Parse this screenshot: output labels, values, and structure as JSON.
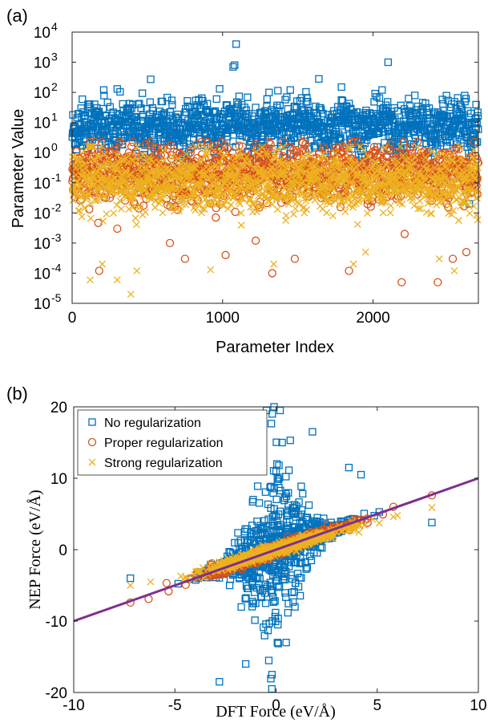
{
  "colors": {
    "no_reg": "#0072BD",
    "proper_reg": "#D95319",
    "strong_reg": "#EDB120",
    "fit_line": "#7E2F8E"
  },
  "chart_data": [
    {
      "panel_label": "(a)",
      "type": "scatter",
      "xlabel": "Parameter Index",
      "ylabel": "Parameter Value",
      "xlim": [
        0,
        2700
      ],
      "ylim": [
        1e-05,
        10000.0
      ],
      "yscale": "log",
      "x_ticks": [
        0,
        1000,
        2000
      ],
      "x_tick_labels": [
        "0",
        "1000",
        "2000"
      ],
      "y_tick_exponents": [
        -5,
        -4,
        -3,
        -2,
        -1,
        0,
        1,
        2,
        3,
        4
      ],
      "y_tick_base": "10",
      "grid": false,
      "series": [
        {
          "marker": "square",
          "color_key": "no_reg",
          "points_desc": "approx. 2700 points, one per parameter, typically between 0.5 and 200",
          "outliers": [
            [
              1090,
              4000
            ],
            [
              1080,
              800
            ],
            [
              2100,
              1000
            ],
            [
              1640,
              280
            ],
            [
              1790,
              150
            ],
            [
              2060,
              120
            ],
            [
              210,
              120
            ],
            [
              300,
              130
            ],
            [
              1450,
              120
            ],
            [
              1070,
              700
            ],
            [
              60,
              30
            ],
            [
              960,
              60
            ],
            [
              2650,
              20
            ],
            [
              2640,
              0.02
            ]
          ]
        },
        {
          "marker": "circle",
          "color_key": "proper_reg",
          "points_desc": "approx. 2700 points, typically between 0.002 and 2",
          "outliers": [
            [
              180,
              0.00012
            ],
            [
              1330,
              0.0001
            ],
            [
              2190,
              5e-05
            ],
            [
              2430,
              5e-05
            ],
            [
              750,
              0.0003
            ],
            [
              1480,
              0.0003
            ],
            [
              1840,
              0.00012
            ],
            [
              2530,
              0.0003
            ],
            [
              2620,
              0.0005
            ],
            [
              1020,
              0.0004
            ],
            [
              650,
              0.001
            ],
            [
              2210,
              0.002
            ],
            [
              1220,
              0.0012
            ],
            [
              300,
              0.003
            ]
          ]
        },
        {
          "marker": "x",
          "color_key": "strong_reg",
          "points_desc": "approx. 2700 points, typically between 0.001 and 1",
          "outliers": [
            [
              390,
              2e-05
            ],
            [
              300,
              6e-05
            ],
            [
              120,
              6e-05
            ],
            [
              200,
              0.0002
            ],
            [
              430,
              0.00012
            ],
            [
              920,
              0.00013
            ],
            [
              1340,
              0.0002
            ],
            [
              2540,
              0.00012
            ],
            [
              2440,
              0.0003
            ],
            [
              1870,
              0.0002
            ],
            [
              1950,
              0.0005
            ]
          ]
        }
      ]
    },
    {
      "panel_label": "(b)",
      "type": "scatter",
      "xlabel": "DFT Force (eV/Å)",
      "ylabel": "NEP Force (eV/Å)",
      "xlim": [
        -10,
        10
      ],
      "ylim": [
        -20,
        20
      ],
      "x_ticks": [
        -10,
        -5,
        0,
        5,
        10
      ],
      "x_tick_labels": [
        "-10",
        "-5",
        "0",
        "5",
        "10"
      ],
      "y_ticks": [
        -20,
        -10,
        0,
        10,
        20
      ],
      "y_tick_labels": [
        "-20",
        "-10",
        "0",
        "10",
        "20"
      ],
      "grid": false,
      "legend_position": "top-left",
      "series": [
        {
          "name": "No regularization",
          "marker": "square",
          "color_key": "no_reg",
          "points_desc": "broad cloud around y = x, NEP force roughly between -19 and 20",
          "outliers": [
            [
              -0.1,
              20
            ],
            [
              0.2,
              19.5
            ],
            [
              1.8,
              16.5
            ],
            [
              0.3,
              15
            ],
            [
              -2.8,
              -18.5
            ],
            [
              -0.2,
              -17.5
            ],
            [
              -1.5,
              -16
            ],
            [
              0.5,
              -13
            ],
            [
              7.7,
              3.8
            ],
            [
              -7.2,
              -4
            ],
            [
              3.6,
              11.5
            ],
            [
              4.2,
              10.5
            ]
          ]
        },
        {
          "name": "Proper regularization",
          "marker": "circle",
          "color_key": "proper_reg",
          "points_desc": "tight band along y = x between about -7 and 7.7",
          "outliers": [
            [
              -7.2,
              -7.4
            ],
            [
              -6.3,
              -6.9
            ],
            [
              7.7,
              7.6
            ],
            [
              5.8,
              6.0
            ]
          ]
        },
        {
          "name": "Strong regularization",
          "marker": "x",
          "color_key": "strong_reg",
          "points_desc": "tight band along y = x, slightly compressed",
          "outliers": [
            [
              -7.2,
              -5.0
            ],
            [
              7.7,
              5.9
            ],
            [
              -6.2,
              -4.5
            ],
            [
              5.8,
              4.6
            ]
          ]
        }
      ],
      "reference_line": {
        "x": [
          -10,
          10
        ],
        "y": [
          -10,
          10
        ],
        "color_key": "fit_line"
      }
    }
  ]
}
